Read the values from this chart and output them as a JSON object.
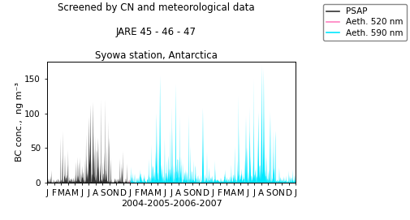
{
  "title_line1": "Screened by CN and meteorological data",
  "title_line2": "JARE 45 - 46 - 47",
  "title_line3": "Syowa station, Antarctica",
  "xlabel": "2004-2005-2006-2007",
  "ylabel": "BC conc.,  ng m⁻³",
  "ylim": [
    0,
    175
  ],
  "yticks": [
    0,
    50,
    100,
    150
  ],
  "month_labels": [
    "J",
    "F",
    "M",
    "A",
    "M",
    "J",
    "J",
    "A",
    "S",
    "O",
    "N",
    "D",
    "J",
    "F",
    "M",
    "A",
    "M",
    "J",
    "J",
    "A",
    "S",
    "O",
    "N",
    "D",
    "J",
    "F",
    "M",
    "A",
    "M",
    "J",
    "J",
    "A",
    "S",
    "O",
    "N",
    "D",
    "J"
  ],
  "psap_color": "#333333",
  "aeth520_color": "#ff80c0",
  "aeth590_color": "#00e8ff",
  "background_color": "#ffffff",
  "legend_labels": [
    "PSAP",
    "Aeth. 520 nm",
    "Aeth. 590 nm"
  ],
  "title_fontsize": 8.5,
  "axis_fontsize": 8,
  "tick_fontsize": 7.5,
  "legend_fontsize": 7.5
}
